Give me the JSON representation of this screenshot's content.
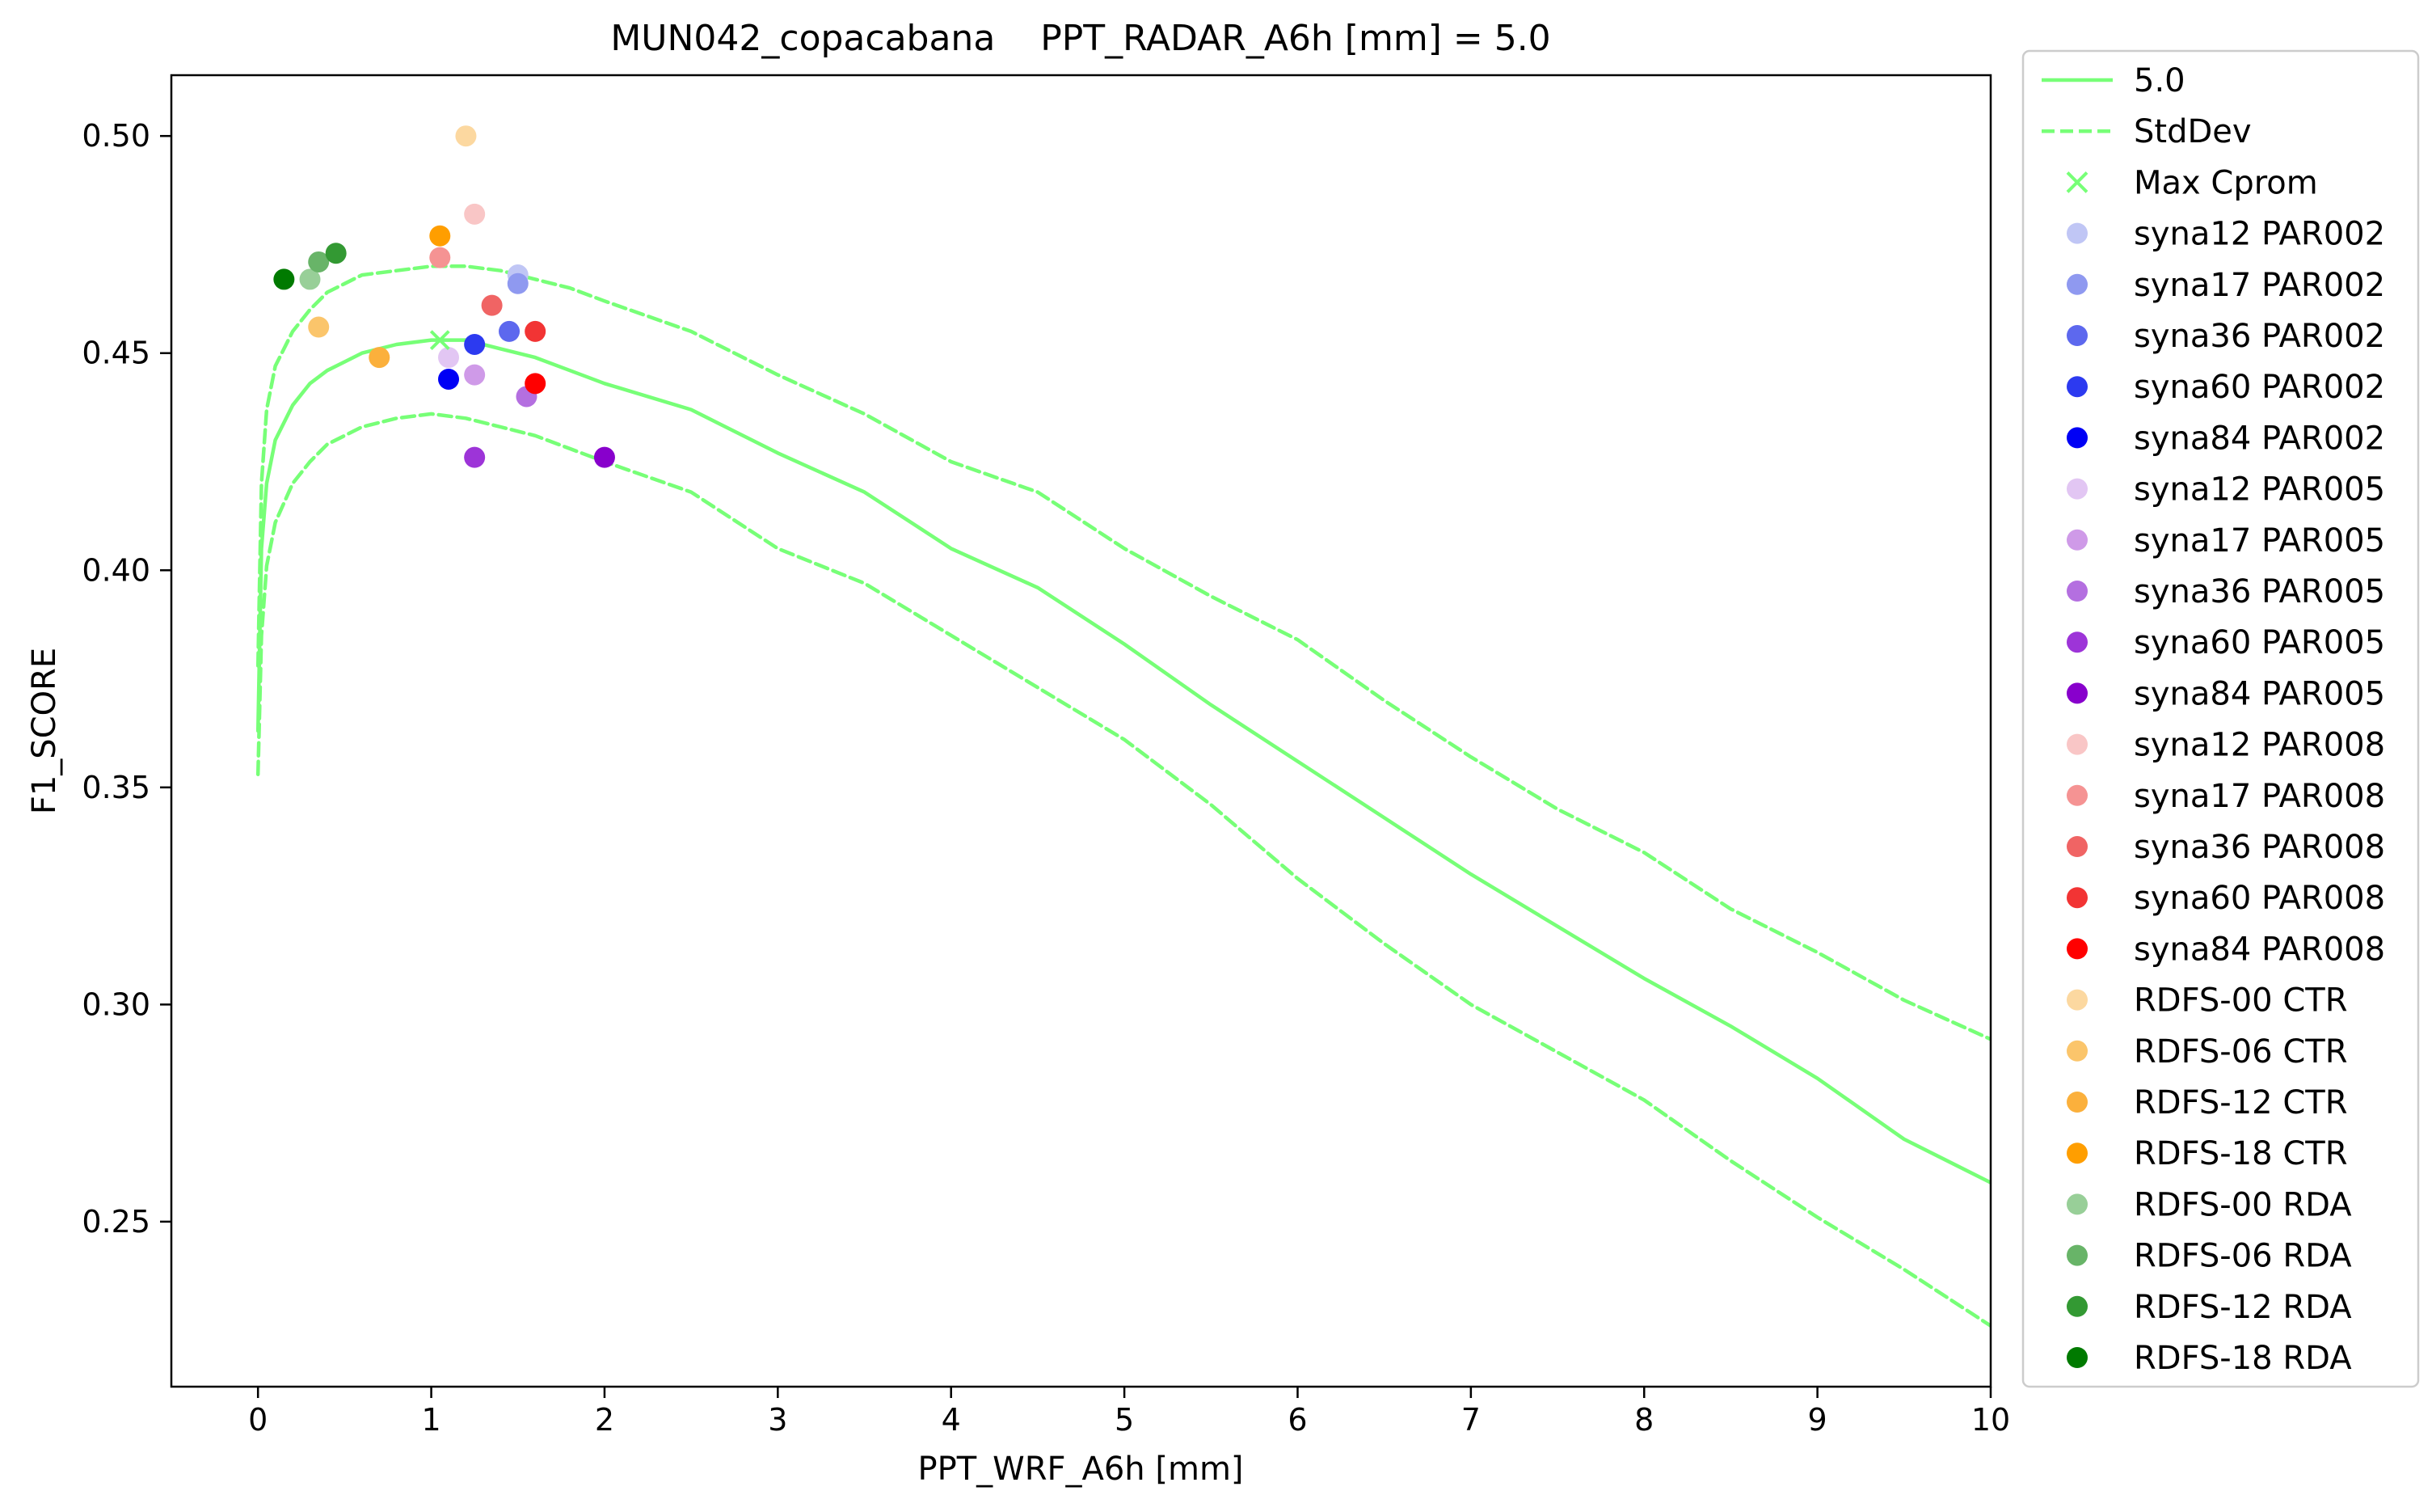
{
  "chart_data": {
    "type": "line+scatter",
    "title": "MUN042_copacabana    PPT_RADAR_A6h [mm] = 5.0",
    "xlabel": "PPT_WRF_A6h [mm]",
    "ylabel": "F1_SCORE",
    "xlim": [
      -0.5,
      10
    ],
    "ylim": [
      0.212,
      0.514
    ],
    "xticks": [
      0,
      1,
      2,
      3,
      4,
      5,
      6,
      7,
      8,
      9,
      10
    ],
    "yticks": [
      0.25,
      0.3,
      0.35,
      0.4,
      0.45,
      0.5
    ],
    "ytick_labels": [
      "0.25",
      "0.30",
      "0.35",
      "0.40",
      "0.45",
      "0.50"
    ],
    "grid": false,
    "legend_position": "outside-right",
    "lines": [
      {
        "name": "5.0",
        "style": "solid",
        "color": "#77ff77",
        "x": [
          0,
          0.02,
          0.05,
          0.1,
          0.2,
          0.3,
          0.4,
          0.5,
          0.6,
          0.8,
          1.0,
          1.2,
          1.4,
          1.6,
          1.8,
          2.0,
          2.5,
          3.0,
          3.5,
          4.0,
          4.5,
          5.0,
          5.5,
          6.0,
          6.5,
          7.0,
          7.5,
          8.0,
          8.5,
          9.0,
          9.5,
          10.0
        ],
        "y": [
          0.363,
          0.405,
          0.42,
          0.43,
          0.438,
          0.443,
          0.446,
          0.448,
          0.45,
          0.452,
          0.453,
          0.453,
          0.451,
          0.449,
          0.446,
          0.443,
          0.437,
          0.427,
          0.418,
          0.405,
          0.396,
          0.383,
          0.369,
          0.356,
          0.343,
          0.33,
          0.318,
          0.306,
          0.295,
          0.283,
          0.269,
          0.259
        ]
      },
      {
        "name": "StdDev",
        "style": "dashed",
        "color": "#77ff77",
        "x": [
          0,
          0.02,
          0.05,
          0.1,
          0.2,
          0.3,
          0.4,
          0.5,
          0.6,
          0.8,
          1.0,
          1.2,
          1.4,
          1.6,
          1.8,
          2.0,
          2.5,
          3.0,
          3.5,
          4.0,
          4.5,
          5.0,
          5.5,
          6.0,
          6.5,
          7.0,
          7.5,
          8.0,
          8.5,
          9.0,
          9.5,
          10.0
        ],
        "y": [
          0.378,
          0.42,
          0.437,
          0.447,
          0.455,
          0.46,
          0.464,
          0.466,
          0.468,
          0.469,
          0.47,
          0.47,
          0.469,
          0.467,
          0.465,
          0.462,
          0.455,
          0.445,
          0.436,
          0.425,
          0.418,
          0.405,
          0.394,
          0.384,
          0.37,
          0.357,
          0.345,
          0.335,
          0.322,
          0.312,
          0.301,
          0.292
        ]
      },
      {
        "name": "StdDev_lower",
        "style": "dashed",
        "color": "#77ff77",
        "in_legend": false,
        "x": [
          0,
          0.02,
          0.05,
          0.1,
          0.2,
          0.3,
          0.4,
          0.5,
          0.6,
          0.8,
          1.0,
          1.2,
          1.4,
          1.6,
          1.8,
          2.0,
          2.5,
          3.0,
          3.5,
          4.0,
          4.5,
          5.0,
          5.5,
          6.0,
          6.5,
          7.0,
          7.5,
          8.0,
          8.5,
          9.0,
          9.5,
          10.0
        ],
        "y": [
          0.353,
          0.385,
          0.401,
          0.411,
          0.42,
          0.425,
          0.429,
          0.431,
          0.433,
          0.435,
          0.436,
          0.435,
          0.433,
          0.431,
          0.428,
          0.425,
          0.418,
          0.405,
          0.397,
          0.385,
          0.373,
          0.361,
          0.346,
          0.329,
          0.314,
          0.3,
          0.289,
          0.278,
          0.264,
          0.251,
          0.239,
          0.226
        ]
      }
    ],
    "max_marker": {
      "name": "Max Cprom",
      "x": 1.05,
      "y": 0.453,
      "color": "#77ff77",
      "marker": "x"
    },
    "points": [
      {
        "name": "syna12 PAR002",
        "x": 1.5,
        "y": 0.468,
        "color": "#c0c6f5"
      },
      {
        "name": "syna17 PAR002",
        "x": 1.5,
        "y": 0.466,
        "color": "#8f99f0"
      },
      {
        "name": "syna36 PAR002",
        "x": 1.45,
        "y": 0.455,
        "color": "#5d68ee"
      },
      {
        "name": "syna60 PAR002",
        "x": 1.25,
        "y": 0.452,
        "color": "#2c3af0"
      },
      {
        "name": "syna84 PAR002",
        "x": 1.1,
        "y": 0.444,
        "color": "#0000f5"
      },
      {
        "name": "syna12 PAR005",
        "x": 1.1,
        "y": 0.449,
        "color": "#e2c6f3"
      },
      {
        "name": "syna17 PAR005",
        "x": 1.25,
        "y": 0.445,
        "color": "#cf9ae8"
      },
      {
        "name": "syna36 PAR005",
        "x": 1.55,
        "y": 0.44,
        "color": "#b46fe0"
      },
      {
        "name": "syna60 PAR005",
        "x": 1.25,
        "y": 0.426,
        "color": "#9d34d8"
      },
      {
        "name": "syna84 PAR005",
        "x": 2.0,
        "y": 0.426,
        "color": "#8800cc"
      },
      {
        "name": "syna12 PAR008",
        "x": 1.25,
        "y": 0.482,
        "color": "#f9c6c6"
      },
      {
        "name": "syna17 PAR008",
        "x": 1.05,
        "y": 0.472,
        "color": "#f59393"
      },
      {
        "name": "syna36 PAR008",
        "x": 1.35,
        "y": 0.461,
        "color": "#f06464"
      },
      {
        "name": "syna60 PAR008",
        "x": 1.6,
        "y": 0.455,
        "color": "#f23434"
      },
      {
        "name": "syna84 PAR008",
        "x": 1.6,
        "y": 0.443,
        "color": "#ff0000"
      },
      {
        "name": "RDFS-00 CTR",
        "x": 1.2,
        "y": 0.5,
        "color": "#fcd8a0"
      },
      {
        "name": "RDFS-06 CTR",
        "x": 0.35,
        "y": 0.456,
        "color": "#fbc56b"
      },
      {
        "name": "RDFS-12 CTR",
        "x": 0.7,
        "y": 0.449,
        "color": "#fbb03c"
      },
      {
        "name": "RDFS-18 CTR",
        "x": 1.05,
        "y": 0.477,
        "color": "#ff9e00"
      },
      {
        "name": "RDFS-00 RDA",
        "x": 0.3,
        "y": 0.467,
        "color": "#98cf98"
      },
      {
        "name": "RDFS-06 RDA",
        "x": 0.35,
        "y": 0.471,
        "color": "#68b468"
      },
      {
        "name": "RDFS-12 RDA",
        "x": 0.45,
        "y": 0.473,
        "color": "#339933"
      },
      {
        "name": "RDFS-18 RDA",
        "x": 0.15,
        "y": 0.467,
        "color": "#007a00"
      }
    ]
  }
}
